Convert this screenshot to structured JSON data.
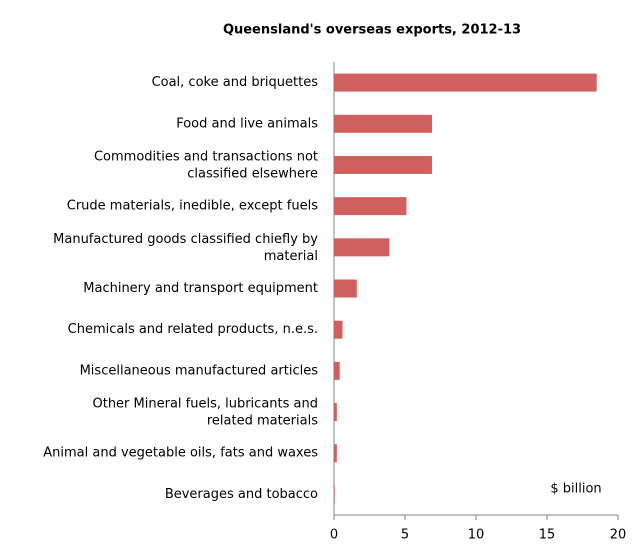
{
  "chart_data": {
    "type": "hbar",
    "title": "Queensland's overseas exports, 2012-13",
    "annotation": "$ billion",
    "categories": [
      "Coal, coke and briquettes",
      "Food and live animals",
      "Commodities and transactions not\nclassified elsewhere",
      "Crude materials, inedible, except fuels",
      "Manufactured goods classified chiefly by\nmaterial",
      "Machinery and transport equipment",
      "Chemicals and related products, n.e.s.",
      "Miscellaneous manufactured articles",
      "Other Mineral fuels, lubricants and\nrelated materials",
      "Animal and vegetable oils, fats and waxes",
      "Beverages and tobacco"
    ],
    "values": [
      18.5,
      6.9,
      6.9,
      5.1,
      3.9,
      1.6,
      0.6,
      0.4,
      0.2,
      0.2,
      0.05
    ],
    "color": "#d0605e",
    "xlim": [
      0,
      20
    ],
    "xticks": [
      0,
      5,
      10,
      15,
      20
    ],
    "grid": false
  }
}
